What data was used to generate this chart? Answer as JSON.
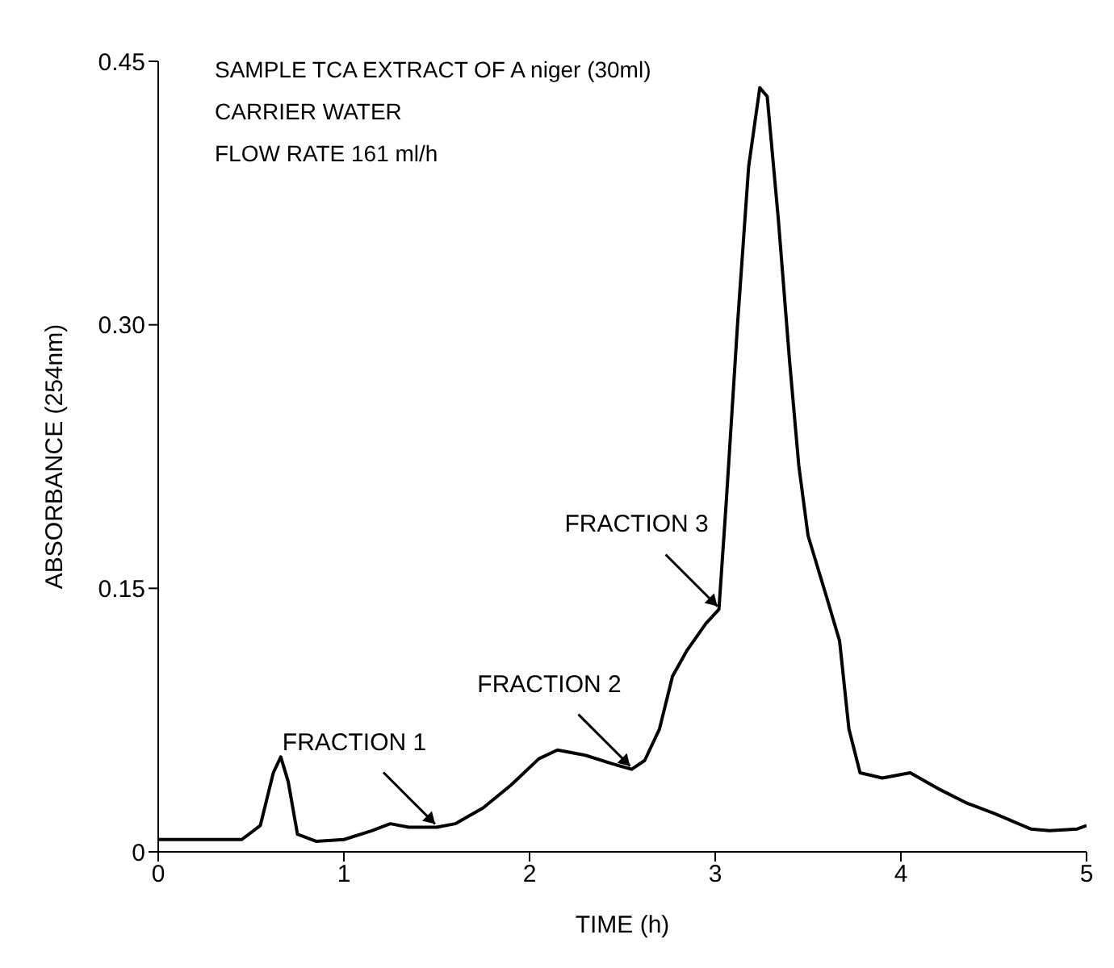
{
  "chart_data": {
    "type": "line",
    "xlabel": "TIME (h)",
    "ylabel": "ABSORBANCE (254nm)",
    "annotations": [
      "SAMPLE TCA EXTRACT OF A niger (30ml)",
      "CARRIER WATER",
      "FLOW RATE 161 ml/h",
      {
        "text": "FRACTION 1",
        "x": 1.5,
        "y": 0.014
      },
      {
        "text": "FRACTION 2",
        "x": 2.55,
        "y": 0.047
      },
      {
        "text": "FRACTION 3",
        "x": 3.02,
        "y": 0.138
      }
    ],
    "x": [
      0,
      0.45,
      0.55,
      0.62,
      0.66,
      0.7,
      0.75,
      0.85,
      1.0,
      1.15,
      1.25,
      1.35,
      1.5,
      1.6,
      1.75,
      1.9,
      2.05,
      2.15,
      2.3,
      2.45,
      2.55,
      2.62,
      2.7,
      2.77,
      2.85,
      2.95,
      3.02,
      3.06,
      3.12,
      3.18,
      3.24,
      3.28,
      3.34,
      3.4,
      3.45,
      3.5,
      3.6,
      3.67,
      3.72,
      3.78,
      3.9,
      4.05,
      4.2,
      4.35,
      4.5,
      4.7,
      4.8,
      4.95,
      5.0
    ],
    "series": [
      {
        "color": "#000000",
        "values": [
          0.007,
          0.007,
          0.015,
          0.045,
          0.054,
          0.04,
          0.01,
          0.006,
          0.007,
          0.012,
          0.016,
          0.014,
          0.014,
          0.016,
          0.025,
          0.038,
          0.053,
          0.058,
          0.055,
          0.05,
          0.047,
          0.052,
          0.07,
          0.1,
          0.115,
          0.13,
          0.138,
          0.2,
          0.3,
          0.39,
          0.435,
          0.43,
          0.36,
          0.28,
          0.22,
          0.18,
          0.145,
          0.12,
          0.07,
          0.045,
          0.042,
          0.045,
          0.036,
          0.028,
          0.022,
          0.013,
          0.012,
          0.013,
          0.015
        ]
      }
    ],
    "xlim": [
      0,
      5
    ],
    "ylim": [
      0,
      0.45
    ],
    "xticks": [
      0,
      1,
      2,
      3,
      4,
      5
    ],
    "yticks": [
      0,
      {
        "value": 0.15,
        "label": "0.15"
      },
      {
        "value": 0.3,
        "label": "0.30"
      },
      {
        "value": 0.45,
        "label": "0.45"
      }
    ],
    "marker": "none",
    "line_style": "solid"
  }
}
